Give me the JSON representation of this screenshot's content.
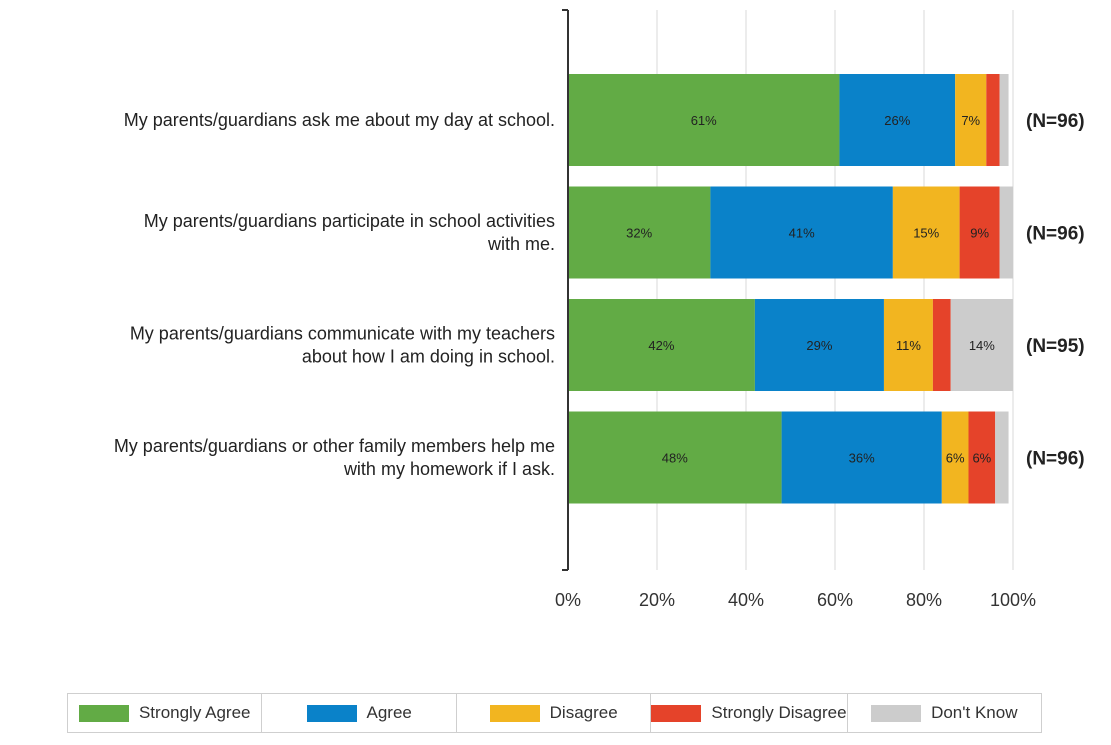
{
  "colors": {
    "strongly_agree": "#62ab45",
    "agree": "#0a82c9",
    "disagree": "#f2b520",
    "strongly_disagree": "#e5432a",
    "dont_know": "#cccccc"
  },
  "chart_data": {
    "type": "bar",
    "orientation": "horizontal",
    "stacked": true,
    "categories": [
      [
        "My parents/guardians ask me about my day at school."
      ],
      [
        "My parents/guardians participate in school activities",
        "with me."
      ],
      [
        "My parents/guardians communicate with my teachers",
        "about how I am doing in school."
      ],
      [
        "My parents/guardians or other family members help me",
        "with my homework if I ask."
      ]
    ],
    "n_labels": [
      "(N=96)",
      "(N=96)",
      "(N=95)",
      "(N=96)"
    ],
    "series": [
      {
        "name": "Strongly Agree",
        "color_key": "strongly_agree",
        "values": [
          61,
          32,
          42,
          48
        ],
        "labels": [
          "61%",
          "32%",
          "42%",
          "48%"
        ]
      },
      {
        "name": "Agree",
        "color_key": "agree",
        "values": [
          26,
          41,
          29,
          36
        ],
        "labels": [
          "26%",
          "41%",
          "29%",
          "36%"
        ]
      },
      {
        "name": "Disagree",
        "color_key": "disagree",
        "values": [
          7,
          15,
          11,
          6
        ],
        "labels": [
          "7%",
          "15%",
          "11%",
          "6%"
        ]
      },
      {
        "name": "Strongly Disagree",
        "color_key": "strongly_disagree",
        "values": [
          3,
          9,
          4,
          6
        ],
        "labels": [
          "",
          "9%",
          "",
          "6%"
        ]
      },
      {
        "name": "Don't Know",
        "color_key": "dont_know",
        "values": [
          2,
          3,
          14,
          3
        ],
        "labels": [
          "",
          "",
          "14%",
          ""
        ]
      }
    ],
    "xlim": [
      0,
      100
    ],
    "x_ticks": [
      0,
      20,
      40,
      60,
      80,
      100
    ],
    "x_tick_labels": [
      "0%",
      "20%",
      "40%",
      "60%",
      "80%",
      "100%"
    ],
    "grid": true,
    "legend_position": "bottom"
  }
}
